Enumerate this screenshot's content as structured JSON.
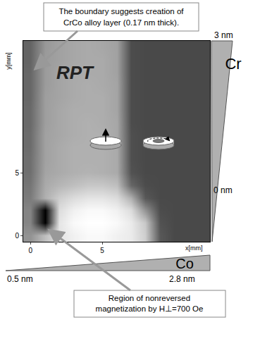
{
  "chart_data": {
    "type": "heatmap",
    "x_label": "x[mm]",
    "y_label": "y[mm]",
    "x": [
      0,
      1,
      2,
      3,
      4,
      5,
      6,
      7,
      8,
      9,
      10,
      11,
      12
    ],
    "y": [
      0,
      1,
      2,
      3,
      4,
      5,
      6,
      7,
      8,
      9,
      10,
      11,
      12,
      13,
      14,
      15
    ],
    "z": [
      [
        60,
        75,
        88,
        92,
        95,
        95,
        92,
        90,
        80,
        40,
        35,
        35,
        35
      ],
      [
        55,
        10,
        88,
        95,
        97,
        97,
        95,
        90,
        78,
        38,
        35,
        35,
        35
      ],
      [
        55,
        10,
        85,
        92,
        95,
        95,
        92,
        85,
        60,
        36,
        35,
        35,
        35
      ],
      [
        52,
        70,
        80,
        85,
        88,
        88,
        85,
        70,
        40,
        35,
        35,
        35,
        35
      ],
      [
        50,
        68,
        72,
        75,
        78,
        78,
        75,
        45,
        36,
        35,
        35,
        35,
        35
      ],
      [
        48,
        66,
        68,
        70,
        71,
        70,
        68,
        38,
        35,
        35,
        35,
        35,
        35
      ],
      [
        48,
        65,
        68,
        70,
        70,
        70,
        68,
        37,
        35,
        35,
        35,
        35,
        35
      ],
      [
        47,
        65,
        68,
        70,
        70,
        70,
        68,
        37,
        35,
        35,
        35,
        35,
        35
      ],
      [
        47,
        65,
        67,
        69,
        70,
        70,
        67,
        37,
        35,
        35,
        35,
        35,
        35
      ],
      [
        46,
        64,
        67,
        69,
        70,
        69,
        67,
        36,
        35,
        35,
        35,
        35,
        35
      ],
      [
        46,
        64,
        67,
        69,
        69,
        69,
        66,
        36,
        35,
        35,
        35,
        35,
        35
      ],
      [
        45,
        64,
        66,
        68,
        69,
        69,
        66,
        36,
        35,
        35,
        35,
        35,
        35
      ],
      [
        45,
        63,
        66,
        68,
        69,
        68,
        66,
        36,
        35,
        35,
        35,
        35,
        35
      ],
      [
        45,
        63,
        66,
        68,
        68,
        68,
        65,
        36,
        35,
        35,
        35,
        35,
        35
      ],
      [
        44,
        63,
        65,
        67,
        68,
        68,
        65,
        36,
        35,
        35,
        35,
        35,
        35
      ],
      [
        44,
        62,
        65,
        67,
        68,
        67,
        65,
        36,
        35,
        35,
        35,
        35,
        35
      ]
    ],
    "xlim": [
      -0.5,
      12.5
    ],
    "ylim": [
      -0.5,
      15.5
    ],
    "xticks": [
      0,
      5
    ],
    "yticks": [
      0,
      5
    ],
    "annotations": {
      "label": "RPT",
      "boundary_note": [
        "The boundary suggests creation of",
        "CrCo alloy layer (0.17 nm thick)."
      ],
      "region_note": [
        "Region of nonreversed",
        "magnetization by H⊥=700 Oe"
      ]
    },
    "cr_wedge": {
      "label": "Cr",
      "min": "0 nm",
      "max": "3 nm"
    },
    "co_wedge": {
      "label": "Co",
      "min": "0.5 nm",
      "max": "2.8 nm"
    }
  }
}
